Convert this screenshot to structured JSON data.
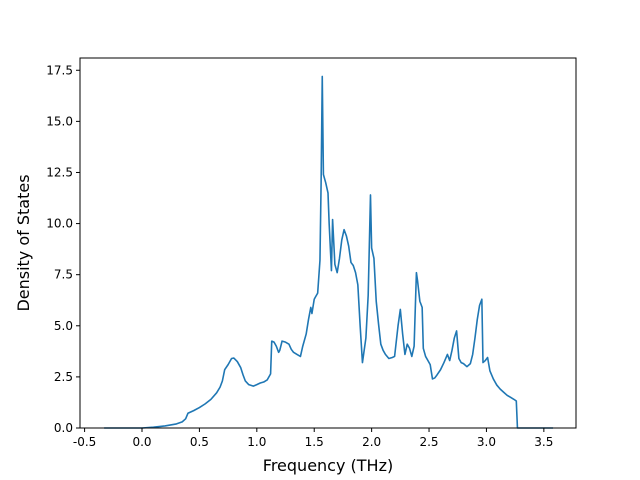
{
  "chart_data": {
    "type": "line",
    "title": "",
    "xlabel": "Frequency (THz)",
    "ylabel": "Density of States",
    "xlim": [
      -0.54,
      3.78
    ],
    "ylim": [
      0,
      18.1
    ],
    "xticks": [
      "-0.5",
      "0.0",
      "0.5",
      "1.0",
      "1.5",
      "2.0",
      "2.5",
      "3.0",
      "3.5"
    ],
    "xtick_values": [
      -0.5,
      0.0,
      0.5,
      1.0,
      1.5,
      2.0,
      2.5,
      3.0,
      3.5
    ],
    "yticks": [
      "0.0",
      "2.5",
      "5.0",
      "7.5",
      "10.0",
      "12.5",
      "15.0",
      "17.5"
    ],
    "ytick_values": [
      0.0,
      2.5,
      5.0,
      7.5,
      10.0,
      12.5,
      15.0,
      17.5
    ],
    "grid": false,
    "line_color": "#1f77b4",
    "series": [
      {
        "x": [
          -0.33,
          0.0,
          0.1,
          0.2,
          0.3,
          0.35,
          0.38,
          0.4,
          0.45,
          0.5,
          0.55,
          0.6,
          0.65,
          0.68,
          0.7,
          0.72,
          0.75,
          0.78,
          0.8,
          0.83,
          0.86,
          0.88,
          0.9,
          0.93,
          0.97,
          1.0,
          1.03,
          1.06,
          1.09,
          1.12,
          1.13,
          1.15,
          1.17,
          1.19,
          1.2,
          1.22,
          1.25,
          1.28,
          1.3,
          1.32,
          1.35,
          1.38,
          1.4,
          1.43,
          1.45,
          1.47,
          1.48,
          1.5,
          1.51,
          1.53,
          1.55,
          1.56,
          1.57,
          1.58,
          1.6,
          1.62,
          1.63,
          1.65,
          1.66,
          1.68,
          1.7,
          1.72,
          1.74,
          1.76,
          1.78,
          1.8,
          1.82,
          1.84,
          1.86,
          1.88,
          1.9,
          1.92,
          1.95,
          1.97,
          1.99,
          2.0,
          2.02,
          2.04,
          2.06,
          2.08,
          2.1,
          2.12,
          2.15,
          2.18,
          2.2,
          2.23,
          2.25,
          2.27,
          2.29,
          2.31,
          2.33,
          2.35,
          2.37,
          2.39,
          2.4,
          2.42,
          2.44,
          2.45,
          2.47,
          2.49,
          2.51,
          2.53,
          2.55,
          2.57,
          2.6,
          2.63,
          2.66,
          2.68,
          2.7,
          2.72,
          2.74,
          2.76,
          2.78,
          2.8,
          2.83,
          2.86,
          2.88,
          2.9,
          2.92,
          2.94,
          2.96,
          2.97,
          2.99,
          3.01,
          3.03,
          3.06,
          3.09,
          3.12,
          3.15,
          3.18,
          3.21,
          3.24,
          3.26,
          3.27,
          3.3,
          3.58
        ],
        "y": [
          0.0,
          0.0,
          0.04,
          0.1,
          0.2,
          0.3,
          0.45,
          0.72,
          0.85,
          1.0,
          1.18,
          1.4,
          1.72,
          2.0,
          2.3,
          2.85,
          3.1,
          3.4,
          3.42,
          3.25,
          2.95,
          2.6,
          2.3,
          2.12,
          2.05,
          2.12,
          2.2,
          2.25,
          2.35,
          2.65,
          4.25,
          4.2,
          4.0,
          3.7,
          3.8,
          4.25,
          4.2,
          4.1,
          3.85,
          3.7,
          3.6,
          3.5,
          4.0,
          4.6,
          5.3,
          5.9,
          5.6,
          6.3,
          6.4,
          6.6,
          8.2,
          12.0,
          17.2,
          12.4,
          12.0,
          11.5,
          10.0,
          7.7,
          10.2,
          8.0,
          7.6,
          8.3,
          9.2,
          9.7,
          9.4,
          8.9,
          8.1,
          7.95,
          7.6,
          7.0,
          5.0,
          3.2,
          4.4,
          6.5,
          11.4,
          8.8,
          8.3,
          6.2,
          5.1,
          4.1,
          3.8,
          3.6,
          3.4,
          3.45,
          3.5,
          5.0,
          5.8,
          4.6,
          3.6,
          4.1,
          3.9,
          3.5,
          4.0,
          7.6,
          7.2,
          6.2,
          5.9,
          3.9,
          3.5,
          3.3,
          3.1,
          2.4,
          2.45,
          2.6,
          2.85,
          3.2,
          3.6,
          3.3,
          3.8,
          4.4,
          4.75,
          3.4,
          3.2,
          3.15,
          3.0,
          3.15,
          3.6,
          4.4,
          5.3,
          6.0,
          6.3,
          3.2,
          3.3,
          3.45,
          2.8,
          2.4,
          2.1,
          1.9,
          1.75,
          1.6,
          1.5,
          1.4,
          1.32,
          0.0,
          0.0,
          0.0
        ]
      }
    ]
  }
}
